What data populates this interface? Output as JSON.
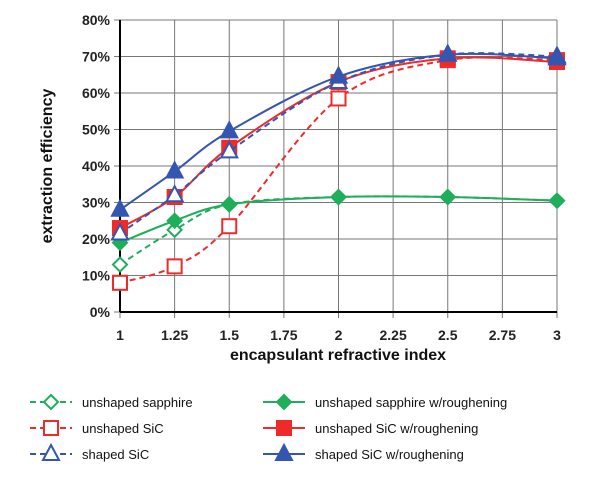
{
  "chart_data": {
    "type": "line",
    "xlabel": "encapsulant refractive index",
    "ylabel": "extraction efficiency",
    "xlim": [
      1,
      3
    ],
    "ylim": [
      0,
      80
    ],
    "x_ticks": [
      "1",
      "1.25",
      "1.5",
      "1.75",
      "2",
      "2.25",
      "2.5",
      "2.75",
      "3"
    ],
    "y_ticks": [
      "0%",
      "10%",
      "20%",
      "30%",
      "40%",
      "50%",
      "60%",
      "70%",
      "80%"
    ],
    "grid": true,
    "legend_position": "bottom",
    "x": [
      1,
      1.25,
      1.5,
      2,
      2.5,
      3
    ],
    "series": [
      {
        "name": "unshaped sapphire",
        "color": "#1fae5c",
        "dashed": true,
        "marker": "diamond-open",
        "values": [
          13,
          22.5,
          29.5,
          31.5,
          31.5,
          30.5
        ]
      },
      {
        "name": "unshaped sapphire w/roughening",
        "color": "#1fae5c",
        "dashed": false,
        "marker": "diamond-filled",
        "values": [
          19,
          25,
          29.5,
          31.5,
          31.5,
          30.5
        ]
      },
      {
        "name": "unshaped SiC",
        "color": "#ee2a2a",
        "dashed": true,
        "marker": "square-open",
        "values": [
          8,
          12.5,
          23.5,
          58.5,
          69,
          69
        ]
      },
      {
        "name": "unshaped SiC w/roughening",
        "color": "#ee2a2a",
        "dashed": false,
        "marker": "square-filled",
        "values": [
          23,
          31.5,
          45,
          63,
          69.5,
          68.5
        ]
      },
      {
        "name": "shaped SiC",
        "color": "#3556b0",
        "dashed": true,
        "marker": "triangle-open",
        "values": [
          21.5,
          32,
          44,
          63,
          70.5,
          70
        ]
      },
      {
        "name": "shaped SiC w/roughening",
        "color": "#3556b0",
        "dashed": false,
        "marker": "triangle-filled",
        "values": [
          28,
          38.5,
          49.5,
          64.5,
          70.5,
          69.5
        ]
      }
    ]
  }
}
